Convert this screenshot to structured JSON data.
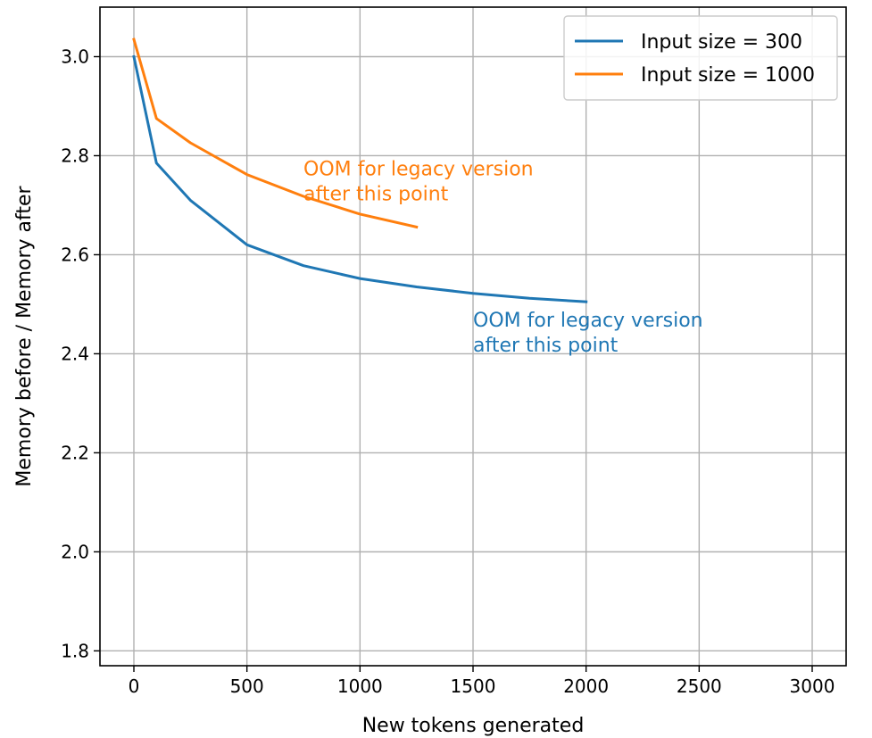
{
  "chart_data": {
    "type": "line",
    "xlabel": "New tokens generated",
    "ylabel": "Memory before / Memory after",
    "xlim": [
      -150,
      3150
    ],
    "ylim": [
      1.77,
      3.1
    ],
    "xticks": [
      0,
      500,
      1000,
      1500,
      2000,
      2500,
      3000
    ],
    "yticks": [
      1.8,
      2.0,
      2.2,
      2.4,
      2.6,
      2.8,
      3.0
    ],
    "xtick_labels": [
      "0",
      "500",
      "1000",
      "1500",
      "2000",
      "2500",
      "3000"
    ],
    "ytick_labels": [
      "1.8",
      "2.0",
      "2.2",
      "2.4",
      "2.6",
      "2.8",
      "3.0"
    ],
    "grid": true,
    "legend_position": "top-right",
    "series": [
      {
        "name": "Input size = 300",
        "color": "#1f77b4",
        "x": [
          0,
          100,
          250,
          500,
          750,
          1000,
          1250,
          1500,
          1750,
          2000
        ],
        "y": [
          3.0,
          2.785,
          2.71,
          2.62,
          2.578,
          2.552,
          2.535,
          2.522,
          2.512,
          2.505
        ]
      },
      {
        "name": "Input size = 1000",
        "color": "#ff7f0e",
        "x": [
          0,
          100,
          250,
          500,
          750,
          1000,
          1250
        ],
        "y": [
          3.035,
          2.875,
          2.826,
          2.762,
          2.718,
          2.682,
          2.656
        ]
      }
    ],
    "annotations": [
      {
        "lines": [
          "OOM for legacy version",
          "after this point"
        ],
        "x": 750,
        "y": 2.76,
        "color": "#ff7f0e"
      },
      {
        "lines": [
          "OOM for legacy version",
          "after this point"
        ],
        "x": 1500,
        "y": 2.455,
        "color": "#1f77b4"
      }
    ]
  }
}
